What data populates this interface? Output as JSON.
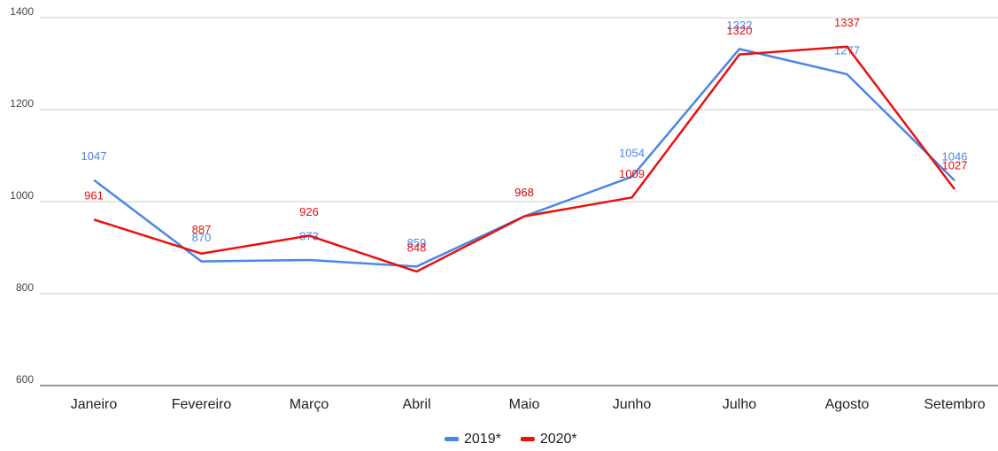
{
  "chart_data": {
    "type": "line",
    "categories": [
      "Janeiro",
      "Fevereiro",
      "Março",
      "Abril",
      "Maio",
      "Junho",
      "Julho",
      "Agosto",
      "Setembro"
    ],
    "series": [
      {
        "name": "2019*",
        "color": "#4a86e8",
        "values": [
          1047,
          870,
          873,
          859,
          968,
          1054,
          1332,
          1277,
          1046
        ]
      },
      {
        "name": "2020*",
        "color": "#e8110f",
        "values": [
          961,
          887,
          926,
          848,
          968,
          1009,
          1320,
          1337,
          1027
        ]
      }
    ],
    "ylim": [
      600,
      1400
    ],
    "yticks": [
      600,
      800,
      1000,
      1200,
      1400
    ],
    "grid": true,
    "legend": "bottom"
  }
}
